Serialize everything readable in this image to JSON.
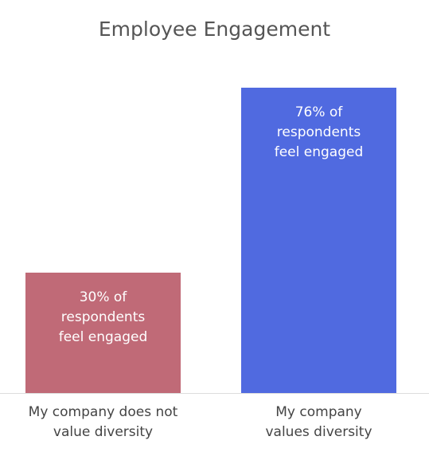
{
  "chart_data": {
    "type": "bar",
    "title": "Employee Engagement",
    "categories": [
      "My company does not value diversity",
      "My company values diversity"
    ],
    "values": [
      30,
      76
    ],
    "value_labels": [
      "30% of respondents feel engaged",
      "76% of respondents feel engaged"
    ],
    "colors": [
      "#c06a77",
      "#506ae0"
    ]
  }
}
